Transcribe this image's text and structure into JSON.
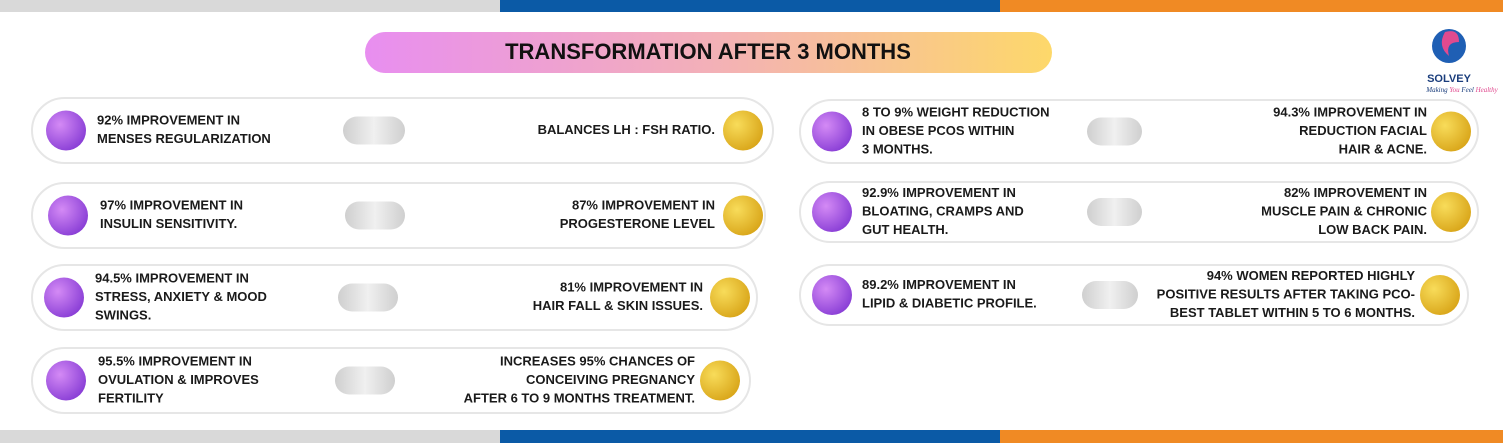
{
  "title": "TRANSFORMATION AFTER 3 MONTHS",
  "logo": {
    "name": "SOLVEY",
    "tagline": [
      "Making",
      "You",
      "Feel",
      "Healthy"
    ]
  },
  "cards": [
    {
      "left": [
        "92% IMPROVEMENT IN",
        "MENSES REGULARIZATION"
      ],
      "right": [
        "BALANCES LH : FSH RATIO."
      ]
    },
    {
      "left": [
        "97% IMPROVEMENT IN",
        "INSULIN SENSITIVITY."
      ],
      "right": [
        "87% IMPROVEMENT IN",
        "PROGESTERONE LEVEL"
      ]
    },
    {
      "left": [
        "94.5% IMPROVEMENT IN",
        "STRESS, ANXIETY & MOOD",
        "SWINGS."
      ],
      "right": [
        "81% IMPROVEMENT IN",
        "HAIR FALL & SKIN ISSUES."
      ]
    },
    {
      "left": [
        "95.5% IMPROVEMENT IN",
        "OVULATION & IMPROVES",
        "FERTILITY"
      ],
      "right": [
        "INCREASES 95% CHANCES OF",
        "CONCEIVING PREGNANCY",
        "AFTER 6 TO 9 MONTHS TREATMENT."
      ]
    },
    {
      "left": [
        "8 TO 9% WEIGHT REDUCTION",
        "IN OBESE PCOS WITHIN",
        "3 MONTHS."
      ],
      "right": [
        "94.3% IMPROVEMENT IN",
        "REDUCTION FACIAL",
        "HAIR & ACNE."
      ]
    },
    {
      "left": [
        "92.9% IMPROVEMENT IN",
        "BLOATING, CRAMPS AND",
        "GUT HEALTH."
      ],
      "right": [
        "82% IMPROVEMENT IN",
        "MUSCLE PAIN & CHRONIC",
        "LOW BACK PAIN."
      ]
    },
    {
      "left": [
        "89.2% IMPROVEMENT IN",
        "LIPID & DIABETIC PROFILE."
      ],
      "right": [
        "94% WOMEN REPORTED HIGHLY",
        "POSITIVE RESULTS AFTER TAKING PCO-",
        "BEST TABLET WITHIN 5 TO 6 MONTHS."
      ]
    }
  ]
}
